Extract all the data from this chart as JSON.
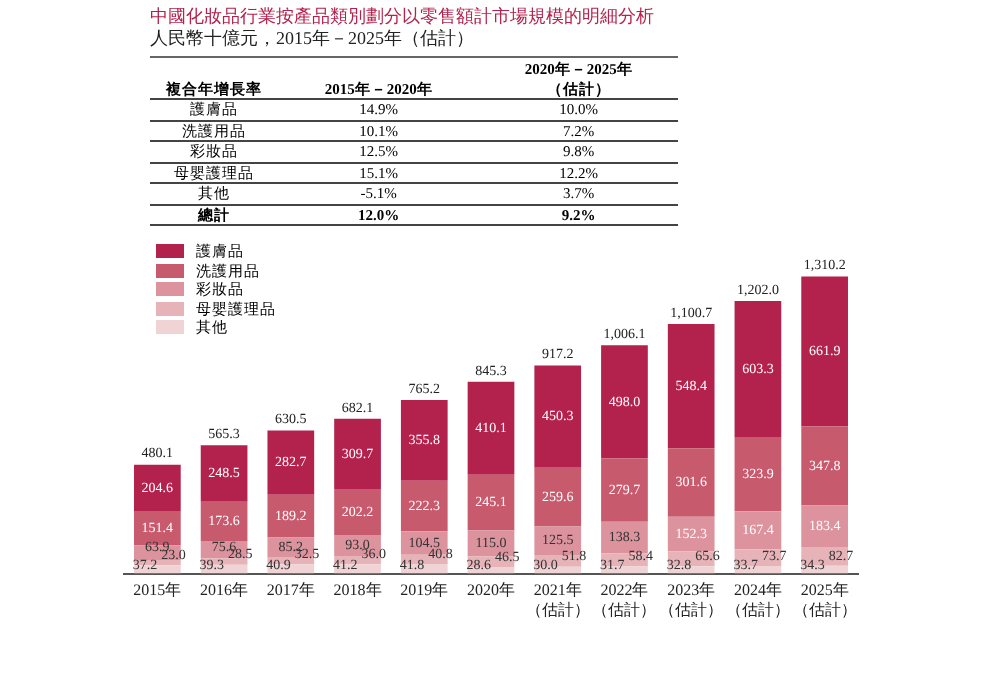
{
  "chart_data": [
    {
      "type": "other",
      "title": "中國化妝品行業按產品類別劃分以零售額計市場規模的明細分析",
      "subtitle": "人民幣十億元，2015年－2025年（估計）",
      "xlabel": "複合年增長率",
      "categories": [
        "護膚品",
        "洗護用品",
        "彩妝品",
        "母嬰護理品",
        "其他",
        "總計"
      ],
      "series": [
        {
          "name": "2015年－2020年",
          "values": [
            14.9,
            10.1,
            12.5,
            15.1,
            -5.1,
            12.0
          ],
          "value_labels": [
            "14.9%",
            "10.1%",
            "12.5%",
            "15.1%",
            "-5.1%",
            "12.0%"
          ]
        },
        {
          "name": "2020年－2025年（估計）",
          "values": [
            10.0,
            7.2,
            9.8,
            12.2,
            3.7,
            9.2
          ],
          "value_labels": [
            "10.0%",
            "7.2%",
            "9.8%",
            "12.2%",
            "3.7%",
            "9.2%"
          ]
        }
      ]
    },
    {
      "type": "bar",
      "stacked": true,
      "legend": "top left",
      "tick_labels": "x",
      "categories": [
        "2015年",
        "2016年",
        "2017年",
        "2018年",
        "2019年",
        "2020年",
        "2021年（估計）",
        "2022年（估計）",
        "2023年（估計）",
        "2024年（估計）",
        "2025年（估計）"
      ],
      "series": [
        {
          "name": "其他",
          "color": "#f0d3d5",
          "values": [
            37.2,
            39.3,
            40.9,
            41.2,
            41.8,
            28.6,
            30.0,
            31.7,
            32.8,
            33.7,
            34.3
          ],
          "value_labels": [
            "37.2",
            "39.3",
            "40.9",
            "41.2",
            "41.8",
            "28.6",
            "30.0",
            "31.7",
            "32.8",
            "33.7",
            "34.3"
          ]
        },
        {
          "name": "母嬰護理品",
          "color": "#e6b3b9",
          "values": [
            23.0,
            28.5,
            32.5,
            36.0,
            40.8,
            46.5,
            51.8,
            58.4,
            65.6,
            73.7,
            82.7
          ],
          "value_labels": [
            "23.0",
            "28.5",
            "32.5",
            "36.0",
            "40.8",
            "46.5",
            "51.8",
            "58.4",
            "65.6",
            "73.7",
            "82.7"
          ]
        },
        {
          "name": "彩妝品",
          "color": "#dc939e",
          "values": [
            63.9,
            75.6,
            85.2,
            93.0,
            104.5,
            115.0,
            125.5,
            138.3,
            152.3,
            167.4,
            183.4
          ],
          "value_labels": [
            "63.9",
            "75.6",
            "85.2",
            "93.0",
            "104.5",
            "115.0",
            "125.5",
            "138.3",
            "152.3",
            "167.4",
            "183.4"
          ]
        },
        {
          "name": "洗護用品",
          "color": "#c85a6e",
          "values": [
            151.4,
            173.6,
            189.2,
            202.2,
            222.3,
            245.1,
            259.6,
            279.7,
            301.6,
            323.9,
            347.8
          ],
          "value_labels": [
            "151.4",
            "173.6",
            "189.2",
            "202.2",
            "222.3",
            "245.1",
            "259.6",
            "279.7",
            "301.6",
            "323.9",
            "347.8"
          ]
        },
        {
          "name": "護膚品",
          "color": "#b3224c",
          "values": [
            204.6,
            248.5,
            282.7,
            309.7,
            355.8,
            410.1,
            450.3,
            498.0,
            548.4,
            603.3,
            661.9
          ],
          "value_labels": [
            "204.6",
            "248.5",
            "282.7",
            "309.7",
            "355.8",
            "410.1",
            "450.3",
            "498.0",
            "548.4",
            "603.3",
            "661.9"
          ]
        }
      ],
      "totals": [
        "480.1",
        "565.3",
        "630.5",
        "682.1",
        "765.2",
        "845.3",
        "917.2",
        "1,006.1",
        "1,100.7",
        "1,202.0",
        "1,310.2"
      ]
    }
  ]
}
